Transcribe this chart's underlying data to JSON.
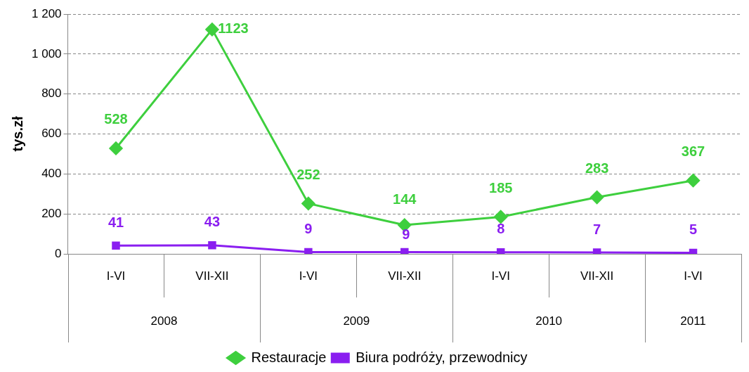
{
  "chart_data": {
    "type": "line",
    "ylabel": "tys.zł",
    "categories": [
      "I-VI",
      "VII-XII",
      "I-VI",
      "VII-XII",
      "I-VI",
      "VII-XII",
      "I-VI"
    ],
    "annotations": [
      "2008",
      "2009",
      "2010",
      "2011"
    ],
    "series": [
      {
        "name": "Restauracje",
        "color": "#3ecf3e",
        "values": [
          528,
          1123,
          252,
          144,
          185,
          283,
          367
        ]
      },
      {
        "name": "Biura podróży, przewodnicy",
        "color": "#8a1ef0",
        "marker": "square",
        "values": [
          41,
          43,
          9,
          9,
          8,
          7,
          5
        ]
      }
    ],
    "ylim": [
      0,
      1200
    ],
    "yticks": [
      0,
      200,
      400,
      600,
      800,
      {
        "value": 1000,
        "label": "1 000"
      },
      {
        "value": 1200,
        "label": "1 200"
      }
    ],
    "grid": "y",
    "legend": "bottom",
    "marker": "diamond",
    "data_labels": true
  }
}
